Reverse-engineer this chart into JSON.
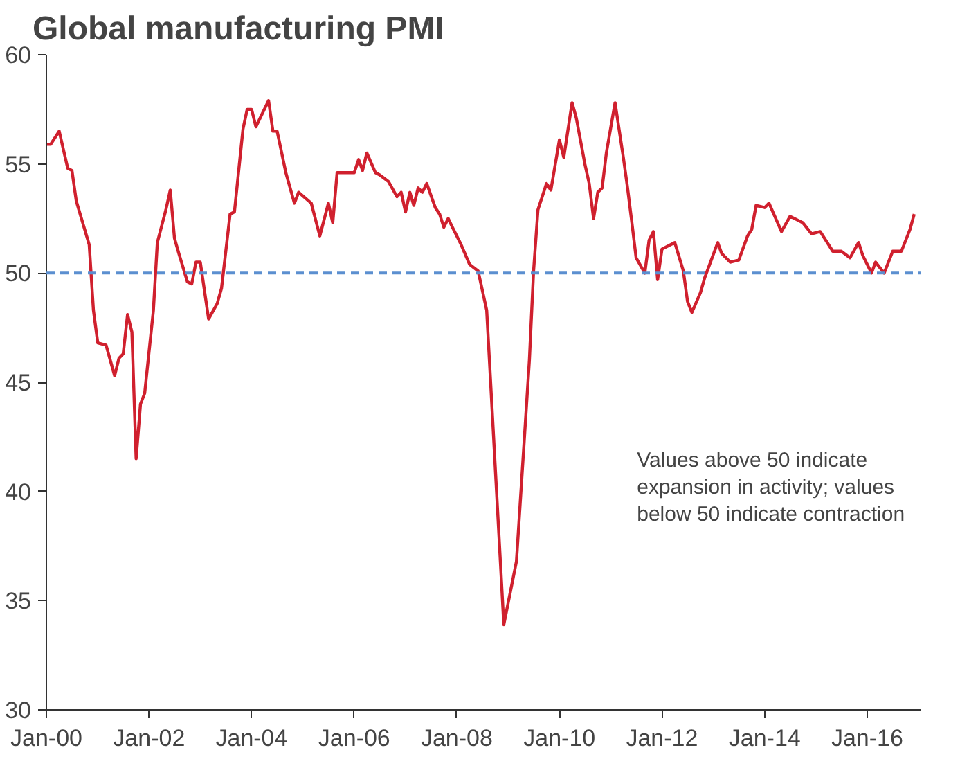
{
  "chart_data": {
    "type": "line",
    "title": "Global manufacturing PMI",
    "x": [
      "2000-01",
      "2000-02",
      "2000-04",
      "2000-06",
      "2000-07",
      "2000-08",
      "2000-11",
      "2000-12",
      "2001-01",
      "2001-03",
      "2001-05",
      "2001-06",
      "2001-07",
      "2001-08",
      "2001-09",
      "2001-10",
      "2001-11",
      "2001-12",
      "2002-02",
      "2002-03",
      "2002-05",
      "2002-06",
      "2002-07",
      "2002-08",
      "2002-10",
      "2002-11",
      "2002-12",
      "2003-01",
      "2003-03",
      "2003-05",
      "2003-06",
      "2003-08",
      "2003-09",
      "2003-11",
      "2003-12",
      "2004-01",
      "2004-02",
      "2004-05",
      "2004-06",
      "2004-07",
      "2004-09",
      "2004-11",
      "2004-12",
      "2005-03",
      "2005-05",
      "2005-07",
      "2005-08",
      "2005-09",
      "2005-11",
      "2006-01",
      "2006-02",
      "2006-03",
      "2006-04",
      "2006-06",
      "2006-07",
      "2006-09",
      "2006-11",
      "2006-12",
      "2007-01",
      "2007-02",
      "2007-03",
      "2007-04",
      "2007-05",
      "2007-06",
      "2007-08",
      "2007-09",
      "2007-10",
      "2007-11",
      "2007-12",
      "2008-02",
      "2008-04",
      "2008-06",
      "2008-08",
      "2008-12",
      "2009-03",
      "2009-06",
      "2009-07",
      "2009-08",
      "2009-10",
      "2009-11",
      "2010-01",
      "2010-02",
      "2010-04",
      "2010-05",
      "2010-07",
      "2010-08",
      "2010-09",
      "2010-10",
      "2010-11",
      "2010-12",
      "2011-02",
      "2011-04",
      "2011-05",
      "2011-06",
      "2011-07",
      "2011-09",
      "2011-10",
      "2011-11",
      "2011-12",
      "2012-01",
      "2012-04",
      "2012-06",
      "2012-07",
      "2012-08",
      "2012-10",
      "2012-11",
      "2013-02",
      "2013-03",
      "2013-05",
      "2013-07",
      "2013-09",
      "2013-10",
      "2013-11",
      "2014-01",
      "2014-02",
      "2014-05",
      "2014-07",
      "2014-09",
      "2014-10",
      "2014-12",
      "2015-02",
      "2015-05",
      "2015-07",
      "2015-09",
      "2015-11",
      "2015-12",
      "2016-02",
      "2016-03",
      "2016-05",
      "2016-07",
      "2016-09",
      "2016-11",
      "2016-12"
    ],
    "series": [
      {
        "color": "#d0202e",
        "values": [
          55.9,
          55.9,
          56.5,
          54.8,
          54.7,
          53.3,
          51.3,
          48.3,
          46.8,
          46.7,
          45.3,
          46.1,
          46.3,
          48.1,
          47.3,
          41.5,
          44.0,
          44.5,
          48.3,
          51.4,
          52.9,
          53.8,
          51.6,
          50.9,
          49.6,
          49.5,
          50.5,
          50.5,
          47.9,
          48.6,
          49.3,
          52.7,
          52.8,
          56.6,
          57.5,
          57.5,
          56.7,
          57.9,
          56.5,
          56.5,
          54.6,
          53.2,
          53.7,
          53.2,
          51.7,
          53.2,
          52.3,
          54.6,
          54.6,
          54.6,
          55.2,
          54.7,
          55.5,
          54.6,
          54.5,
          54.2,
          53.5,
          53.7,
          52.8,
          53.7,
          53.1,
          53.9,
          53.7,
          54.1,
          53.0,
          52.7,
          52.1,
          52.5,
          52.1,
          51.3,
          50.4,
          50.1,
          48.3,
          33.9,
          36.8,
          46.0,
          50.1,
          52.9,
          54.1,
          53.8,
          56.1,
          55.3,
          57.8,
          57.1,
          55.0,
          54.1,
          52.5,
          53.7,
          53.9,
          55.5,
          57.8,
          55.3,
          53.9,
          52.3,
          50.7,
          50.0,
          51.5,
          51.9,
          49.7,
          51.1,
          51.4,
          50.1,
          48.7,
          48.2,
          49.1,
          49.8,
          51.4,
          50.9,
          50.5,
          50.6,
          51.7,
          52.0,
          53.1,
          53.0,
          53.2,
          51.9,
          52.6,
          52.4,
          52.3,
          51.8,
          51.9,
          51.0,
          51.0,
          50.7,
          51.4,
          50.8,
          50.0,
          50.5,
          50.0,
          51.0,
          51.0,
          52.0,
          52.7
        ]
      }
    ],
    "xlim": [
      "2000-01",
      "2017-01-20"
    ],
    "xticks": [
      {
        "value": "2000-01",
        "label": "Jan-00"
      },
      {
        "value": "2002-01",
        "label": "Jan-02"
      },
      {
        "value": "2004-01",
        "label": "Jan-04"
      },
      {
        "value": "2006-01",
        "label": "Jan-06"
      },
      {
        "value": "2008-01",
        "label": "Jan-08"
      },
      {
        "value": "2010-01",
        "label": "Jan-10"
      },
      {
        "value": "2012-01",
        "label": "Jan-12"
      },
      {
        "value": "2014-01",
        "label": "Jan-14"
      },
      {
        "value": "2016-01",
        "label": "Jan-16"
      }
    ],
    "ylim": [
      30,
      60
    ],
    "yticks": [
      30,
      35,
      40,
      45,
      50,
      55,
      60
    ],
    "ref_lines": [
      {
        "axis": "y",
        "value": 50,
        "color": "#5b8fd0",
        "line_style": "dashed"
      }
    ],
    "annotations": [
      "Values above 50 indicate expansion in activity; values below 50 indicate contraction"
    ],
    "grid": false,
    "marker": "none",
    "line_style": "solid"
  }
}
